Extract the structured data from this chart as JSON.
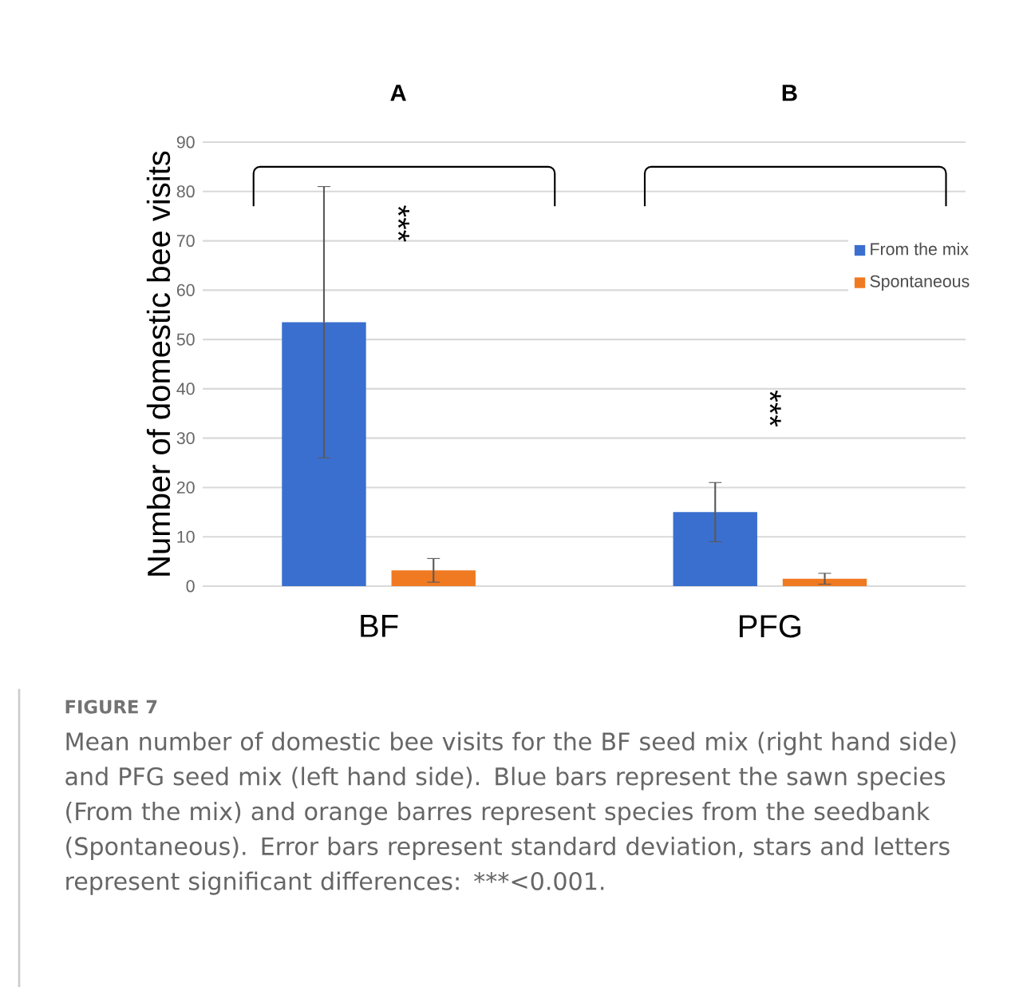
{
  "chart_data": {
    "type": "bar",
    "ylabel": "Number of domestic bee visits",
    "categories": [
      "BF",
      "PFG"
    ],
    "series": [
      {
        "name": "From the mix",
        "color": "#3a6fcf",
        "values": [
          53.5,
          15.0
        ],
        "errors": [
          27.5,
          6.0
        ]
      },
      {
        "name": "Spontaneous",
        "color": "#f07a22",
        "values": [
          3.2,
          1.5
        ],
        "errors": [
          2.4,
          1.1
        ]
      }
    ],
    "ylim": [
      0,
      90
    ],
    "yticks": [
      0,
      10,
      20,
      30,
      40,
      50,
      60,
      70,
      80,
      90
    ],
    "grid": "y",
    "legend": "right",
    "annotations": [
      "A",
      "B",
      "***",
      "***",
      "FIGURE 7",
      "Mean number of domestic bee visits for the BF seed mix (right hand side) and PFG seed mix (left hand side). Blue bars represent the sawn species (From the mix) and orange barres represent species from the seedbank (Spontaneous). Error bars represent standard deviation, stars and letters represent significant differences: ***<0.001."
    ]
  }
}
